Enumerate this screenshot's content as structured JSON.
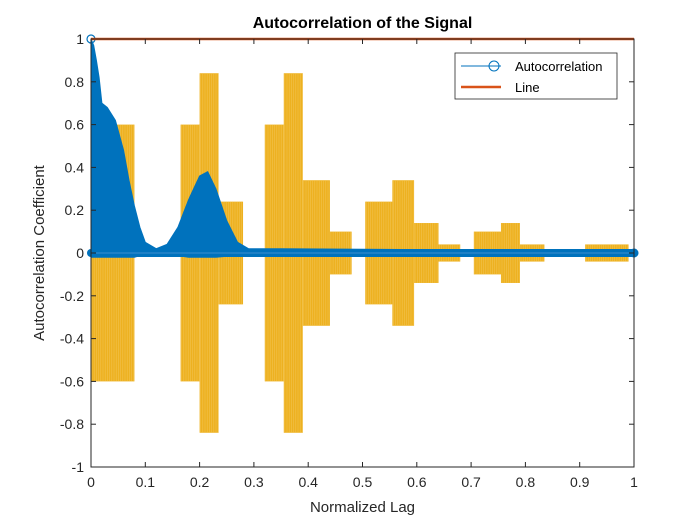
{
  "chart_data": {
    "type": "line",
    "title": "Autocorrelation of the Signal",
    "xlabel": "Normalized Lag",
    "ylabel": "Autocorrelation Coefficient",
    "xlim": [
      0,
      1
    ],
    "ylim": [
      -1,
      1
    ],
    "xticks": [
      0,
      0.1,
      0.2,
      0.3,
      0.4,
      0.5,
      0.6,
      0.7,
      0.8,
      0.9,
      1
    ],
    "xtick_labels": [
      "0",
      "0.1",
      "0.2",
      "0.3",
      "0.4",
      "0.5",
      "0.6",
      "0.7",
      "0.8",
      "0.9",
      "1"
    ],
    "yticks": [
      -1,
      -0.8,
      -0.6,
      -0.4,
      -0.2,
      0,
      0.2,
      0.4,
      0.6,
      0.8,
      1
    ],
    "ytick_labels": [
      "-1",
      "-0.8",
      "-0.6",
      "-0.4",
      "-0.2",
      "0",
      "0.2",
      "0.4",
      "0.6",
      "0.8",
      "1"
    ],
    "grid": false,
    "legend": {
      "location": "top-right"
    },
    "series": [
      {
        "name": "Autocorrelation",
        "color": "#0072BD",
        "marker": "circle",
        "envelope": [
          {
            "x": 0.0,
            "y": 1.0
          },
          {
            "x": 0.005,
            "y": 0.97
          },
          {
            "x": 0.01,
            "y": 0.9
          },
          {
            "x": 0.015,
            "y": 0.82
          },
          {
            "x": 0.02,
            "y": 0.7
          },
          {
            "x": 0.03,
            "y": 0.68
          },
          {
            "x": 0.045,
            "y": 0.62
          },
          {
            "x": 0.06,
            "y": 0.48
          },
          {
            "x": 0.07,
            "y": 0.34
          },
          {
            "x": 0.08,
            "y": 0.22
          },
          {
            "x": 0.09,
            "y": 0.12
          },
          {
            "x": 0.1,
            "y": 0.05
          },
          {
            "x": 0.12,
            "y": 0.02
          },
          {
            "x": 0.14,
            "y": 0.04
          },
          {
            "x": 0.16,
            "y": 0.12
          },
          {
            "x": 0.18,
            "y": 0.25
          },
          {
            "x": 0.2,
            "y": 0.36
          },
          {
            "x": 0.215,
            "y": 0.38
          },
          {
            "x": 0.23,
            "y": 0.3
          },
          {
            "x": 0.25,
            "y": 0.15
          },
          {
            "x": 0.27,
            "y": 0.05
          },
          {
            "x": 0.29,
            "y": 0.02
          },
          {
            "x": 0.35,
            "y": 0.02
          },
          {
            "x": 1.0,
            "y": 0.01
          }
        ],
        "baseline": 0
      },
      {
        "name": "Line",
        "color": "#D95319",
        "x": [
          0,
          1
        ],
        "y": [
          1,
          1
        ]
      },
      {
        "color": "#EDB120",
        "segments": [
          {
            "x0": 0.0,
            "x1": 0.08,
            "amp": 0.6
          },
          {
            "x0": 0.165,
            "x1": 0.2,
            "amp": 0.6
          },
          {
            "x0": 0.2,
            "x1": 0.235,
            "amp": 0.84
          },
          {
            "x0": 0.235,
            "x1": 0.28,
            "amp": 0.24
          },
          {
            "x0": 0.32,
            "x1": 0.355,
            "amp": 0.6
          },
          {
            "x0": 0.355,
            "x1": 0.39,
            "amp": 0.84
          },
          {
            "x0": 0.39,
            "x1": 0.44,
            "amp": 0.34
          },
          {
            "x0": 0.44,
            "x1": 0.48,
            "amp": 0.1
          },
          {
            "x0": 0.505,
            "x1": 0.555,
            "amp": 0.24
          },
          {
            "x0": 0.555,
            "x1": 0.595,
            "amp": 0.34
          },
          {
            "x0": 0.595,
            "x1": 0.64,
            "amp": 0.14
          },
          {
            "x0": 0.64,
            "x1": 0.68,
            "amp": 0.04
          },
          {
            "x0": 0.705,
            "x1": 0.755,
            "amp": 0.1
          },
          {
            "x0": 0.755,
            "x1": 0.79,
            "amp": 0.14
          },
          {
            "x0": 0.79,
            "x1": 0.835,
            "amp": 0.04
          },
          {
            "x0": 0.91,
            "x1": 0.99,
            "amp": 0.04
          }
        ]
      }
    ]
  }
}
